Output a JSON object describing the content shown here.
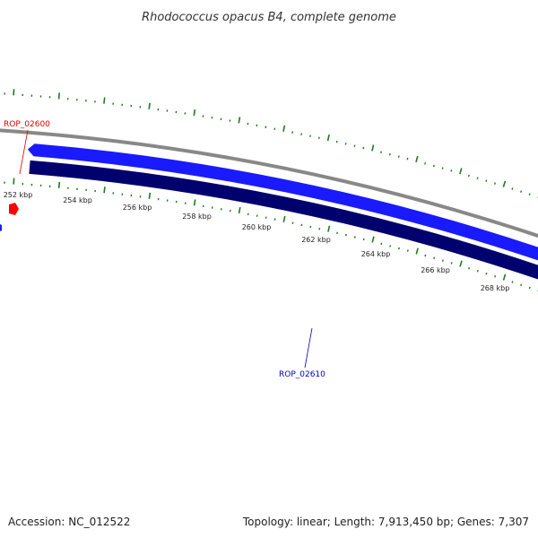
{
  "title": "Rhodococcus opacus B4, complete genome",
  "footer": {
    "accession": "Accession: NC_012522",
    "summary": "Topology: linear; Length: 7,913,450 bp; Genes: 7,307"
  },
  "scale": {
    "tick_labels": [
      "252 kbp",
      "254 kbp",
      "256 kbp",
      "258 kbp",
      "260 kbp",
      "262 kbp",
      "264 kbp",
      "266 kbp",
      "268 kbp"
    ]
  },
  "genes": [
    {
      "id": "ROP_02600",
      "label": "ROP_02600",
      "strand": "forward",
      "color": "#ff0000"
    },
    {
      "id": "ROP_02610",
      "label": "ROP_02610",
      "strand": "forward",
      "color": "#0000ff"
    }
  ],
  "colors": {
    "backbone": "#888888",
    "forward_gene": "#1a1aff",
    "reverse_gene": "#00006e",
    "tick": "#1e7a1e",
    "highlight_gene": "#ff0000",
    "label_red": "#dd0000",
    "label_blue": "#0000cc"
  }
}
